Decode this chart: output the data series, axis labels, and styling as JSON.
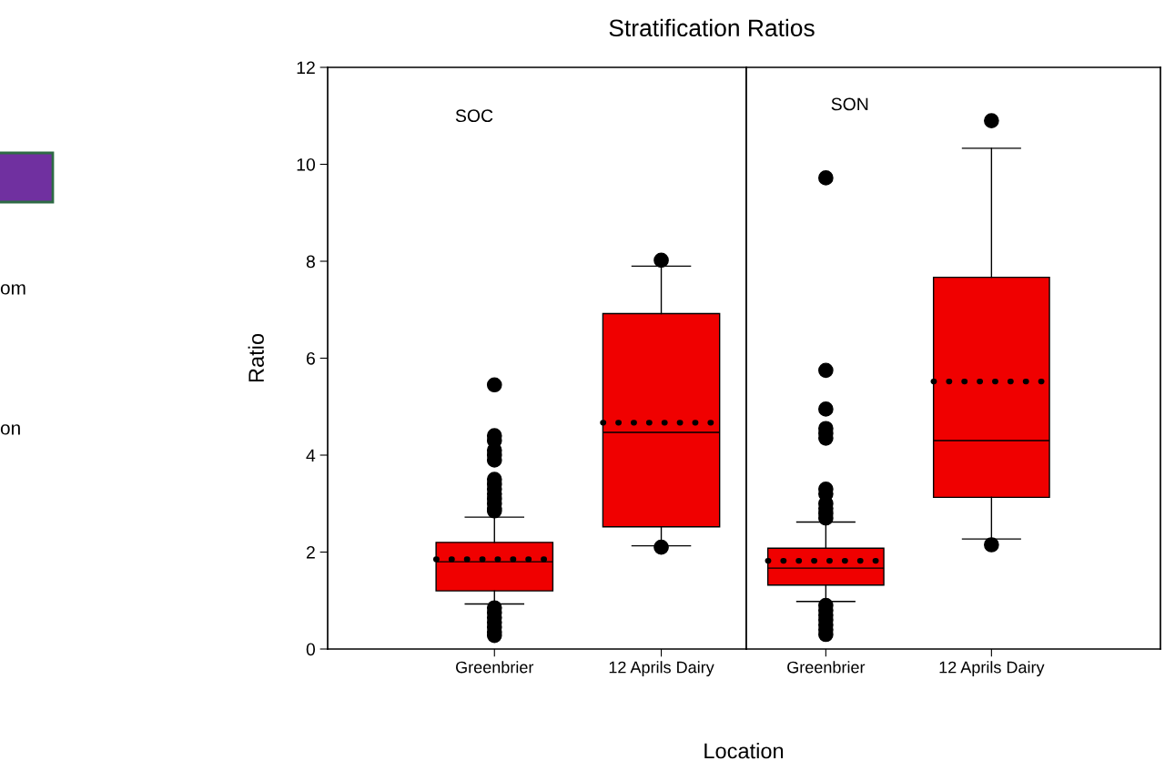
{
  "chart_data": [
    {
      "type": "other",
      "annotations": [
        "om",
        "on"
      ]
    },
    {
      "type": "box",
      "title": "Stratification Ratios",
      "xlabel": "Location",
      "ylabel": "Ratio",
      "annotations": [
        "SOC"
      ],
      "categories": [
        "Greenbrier",
        "12 Aprils Dairy"
      ],
      "color": "#f00000",
      "ylim": [
        0,
        12
      ],
      "yticks": [
        0,
        2,
        4,
        6,
        8,
        10,
        12
      ],
      "grid": false,
      "boxes": [
        {
          "low": 0.93,
          "q1": 1.2,
          "median": 1.8,
          "q3": 2.2,
          "high": 2.72,
          "mean": 1.85,
          "outliers": [
            5.45,
            4.4,
            4.3,
            4.1,
            4.0,
            3.9,
            3.5,
            3.4,
            3.3,
            3.2,
            3.1,
            3.0,
            2.9,
            2.85,
            0.85,
            0.75,
            0.65,
            0.55,
            0.45,
            0.35,
            0.28
          ]
        },
        {
          "low": 2.13,
          "q1": 2.52,
          "median": 4.47,
          "q3": 6.92,
          "high": 7.9,
          "mean": 4.67,
          "outliers": [
            8.02,
            2.1
          ]
        }
      ]
    },
    {
      "type": "box",
      "annotations": [
        "SON"
      ],
      "categories": [
        "Greenbrier",
        "12 Aprils Dairy"
      ],
      "color": "#f00000",
      "ylim": [
        0,
        12
      ],
      "yticks": [
        0,
        2,
        4,
        6,
        8,
        10,
        12
      ],
      "tick_labels": "x",
      "grid": false,
      "boxes": [
        {
          "low": 0.98,
          "q1": 1.32,
          "median": 1.67,
          "q3": 2.08,
          "high": 2.62,
          "mean": 1.82,
          "outliers": [
            9.72,
            5.75,
            4.95,
            4.55,
            4.45,
            4.35,
            3.3,
            3.2,
            3.0,
            2.9,
            2.8,
            2.7,
            0.9,
            0.8,
            0.7,
            0.6,
            0.5,
            0.4,
            0.3
          ]
        },
        {
          "low": 2.27,
          "q1": 3.13,
          "median": 4.3,
          "q3": 7.67,
          "high": 10.33,
          "mean": 5.52,
          "outliers": [
            10.9,
            2.15
          ]
        }
      ]
    }
  ]
}
